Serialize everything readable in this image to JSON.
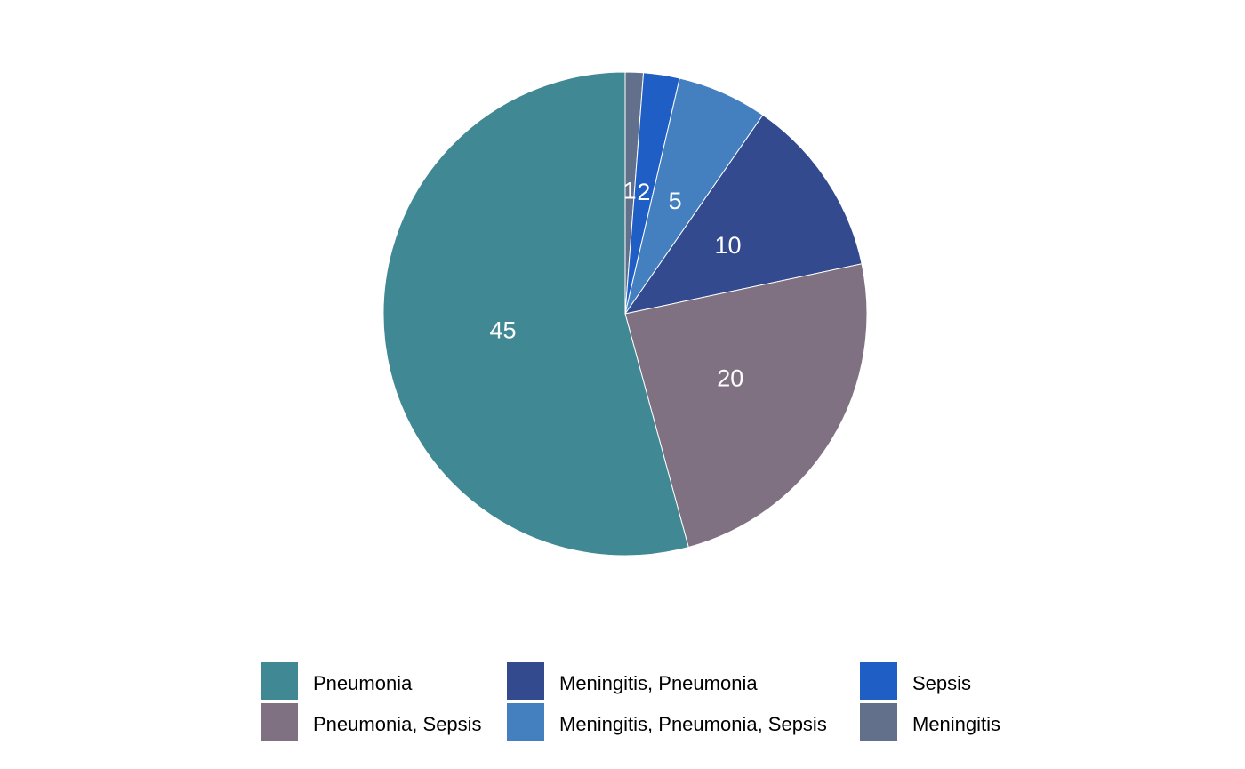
{
  "chart_data": {
    "type": "pie",
    "title": "",
    "start_angle": "12 o'clock",
    "direction": "counter-clockwise",
    "legend_position": "bottom",
    "slices": [
      {
        "label": "Meningitis",
        "value": 1,
        "data_label": "1",
        "color": "#62708c"
      },
      {
        "label": "Sepsis",
        "value": 2,
        "data_label": "2",
        "color": "#1f5ec4"
      },
      {
        "label": "Meningitis, Pneumonia, Sepsis",
        "value": 5,
        "data_label": "5",
        "color": "#4480bf"
      },
      {
        "label": "Meningitis, Pneumonia",
        "value": 10,
        "data_label": "10",
        "color": "#334a8f"
      },
      {
        "label": "Pneumonia, Sepsis",
        "value": 20,
        "data_label": "20",
        "color": "#7f7181"
      },
      {
        "label": "Pneumonia",
        "value": 45,
        "data_label": "45",
        "color": "#408893"
      }
    ],
    "legend": [
      {
        "label": "Pneumonia",
        "color": "#408893"
      },
      {
        "label": "Meningitis, Pneumonia",
        "color": "#334a8f"
      },
      {
        "label": "Sepsis",
        "color": "#1f5ec4"
      },
      {
        "label": "Pneumonia, Sepsis",
        "color": "#7f7181"
      },
      {
        "label": "Meningitis, Pneumonia, Sepsis",
        "color": "#4480bf"
      },
      {
        "label": "Meningitis",
        "color": "#62708c"
      }
    ]
  }
}
